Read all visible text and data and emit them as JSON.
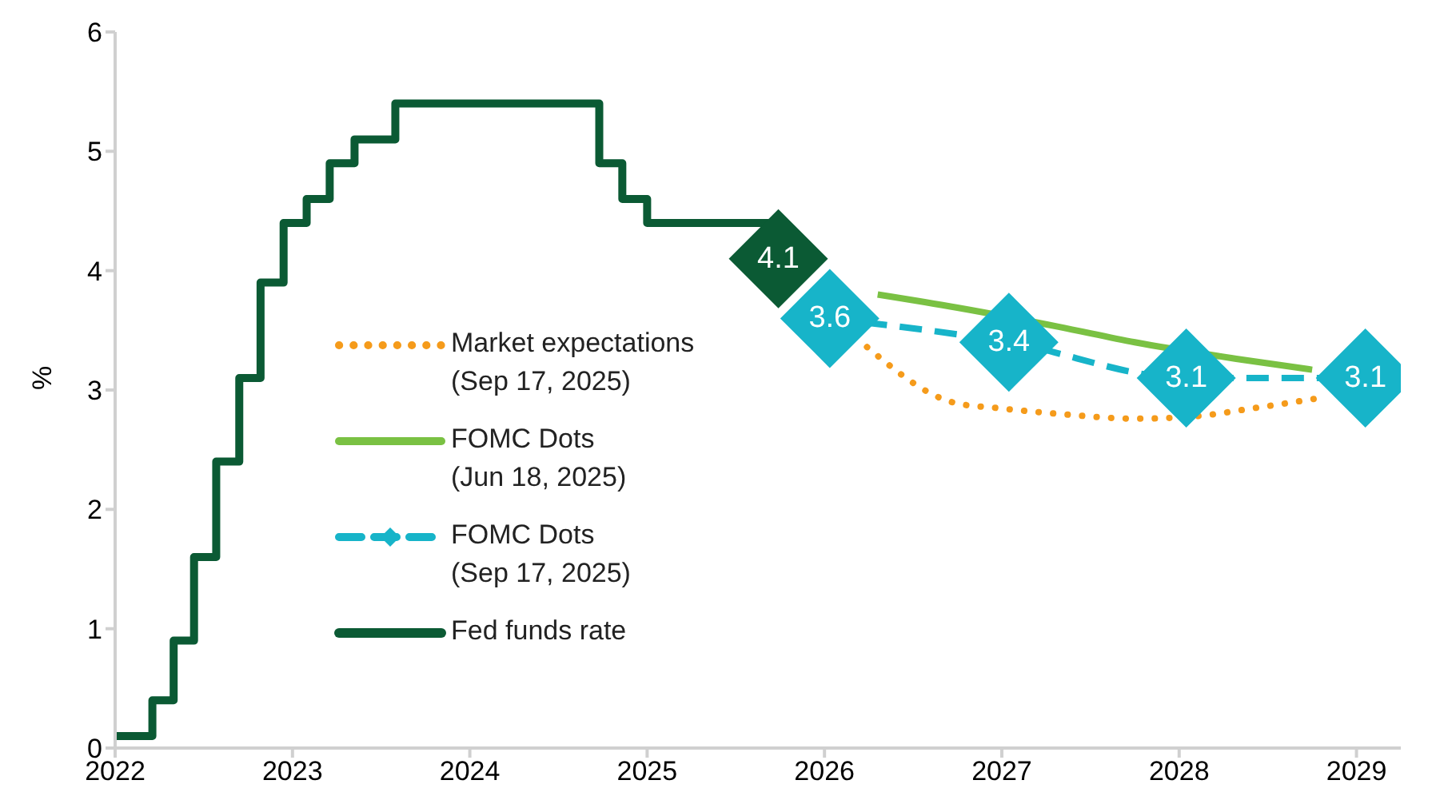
{
  "chart_data": {
    "type": "line",
    "ylabel": "%",
    "xlim": [
      2022,
      2029.25
    ],
    "xticks": [
      2022,
      2023,
      2024,
      2025,
      2026,
      2027,
      2028,
      2029
    ],
    "ylim": [
      0,
      6
    ],
    "yticks": [
      0,
      1,
      2,
      3,
      4,
      5,
      6
    ],
    "legend": "left",
    "series": [
      {
        "name": "Market expectations\n(Sep 17, 2025)",
        "line_style": "dotted",
        "color": "#f59b1b",
        "x": [
          2026.24,
          2026.74,
          2026.97,
          2027.32,
          2027.76,
          2028.09,
          2028.43,
          2028.78
        ],
        "values": [
          3.36,
          2.89,
          2.85,
          2.8,
          2.76,
          2.78,
          2.85,
          2.93
        ]
      },
      {
        "name": "FOMC Dots\n(Jun 18, 2025)",
        "line_style": "solid",
        "color": "#7ac143",
        "x": [
          2026.3,
          2026.75,
          2027.32,
          2027.75,
          2028.33,
          2028.75
        ],
        "values": [
          3.8,
          3.69,
          3.53,
          3.4,
          3.26,
          3.17
        ]
      },
      {
        "name": "FOMC Dots\n(Sep 17, 2025)",
        "line_style": "dashed",
        "marker": "diamond",
        "color": "#17b4c9",
        "x": [
          2026.03,
          2027.04,
          2028.04,
          2029.05
        ],
        "values": [
          3.6,
          3.4,
          3.1,
          3.1
        ],
        "value_labels": [
          "3.6",
          "3.4",
          "3.1",
          "3.1"
        ]
      },
      {
        "name": "Fed funds rate",
        "type": "step",
        "line_style": "solid",
        "color": "#0b5a34",
        "x": [
          2022,
          2022.21,
          2022.33,
          2022.445,
          2022.57,
          2022.7,
          2022.82,
          2022.95,
          2023.08,
          2023.21,
          2023.35,
          2023.58,
          2024.73,
          2024.86,
          2025,
          2025.74
        ],
        "values": [
          0.1,
          0.4,
          0.9,
          1.6,
          2.4,
          3.1,
          3.9,
          4.4,
          4.6,
          4.9,
          5.1,
          5.4,
          4.9,
          4.6,
          4.4,
          4.1
        ]
      },
      {
        "type": "scatter",
        "marker": "diamond",
        "color": "#0b5a34",
        "x": [
          2025.74
        ],
        "values": [
          4.1
        ],
        "value_labels": [
          "4.1"
        ]
      }
    ]
  }
}
